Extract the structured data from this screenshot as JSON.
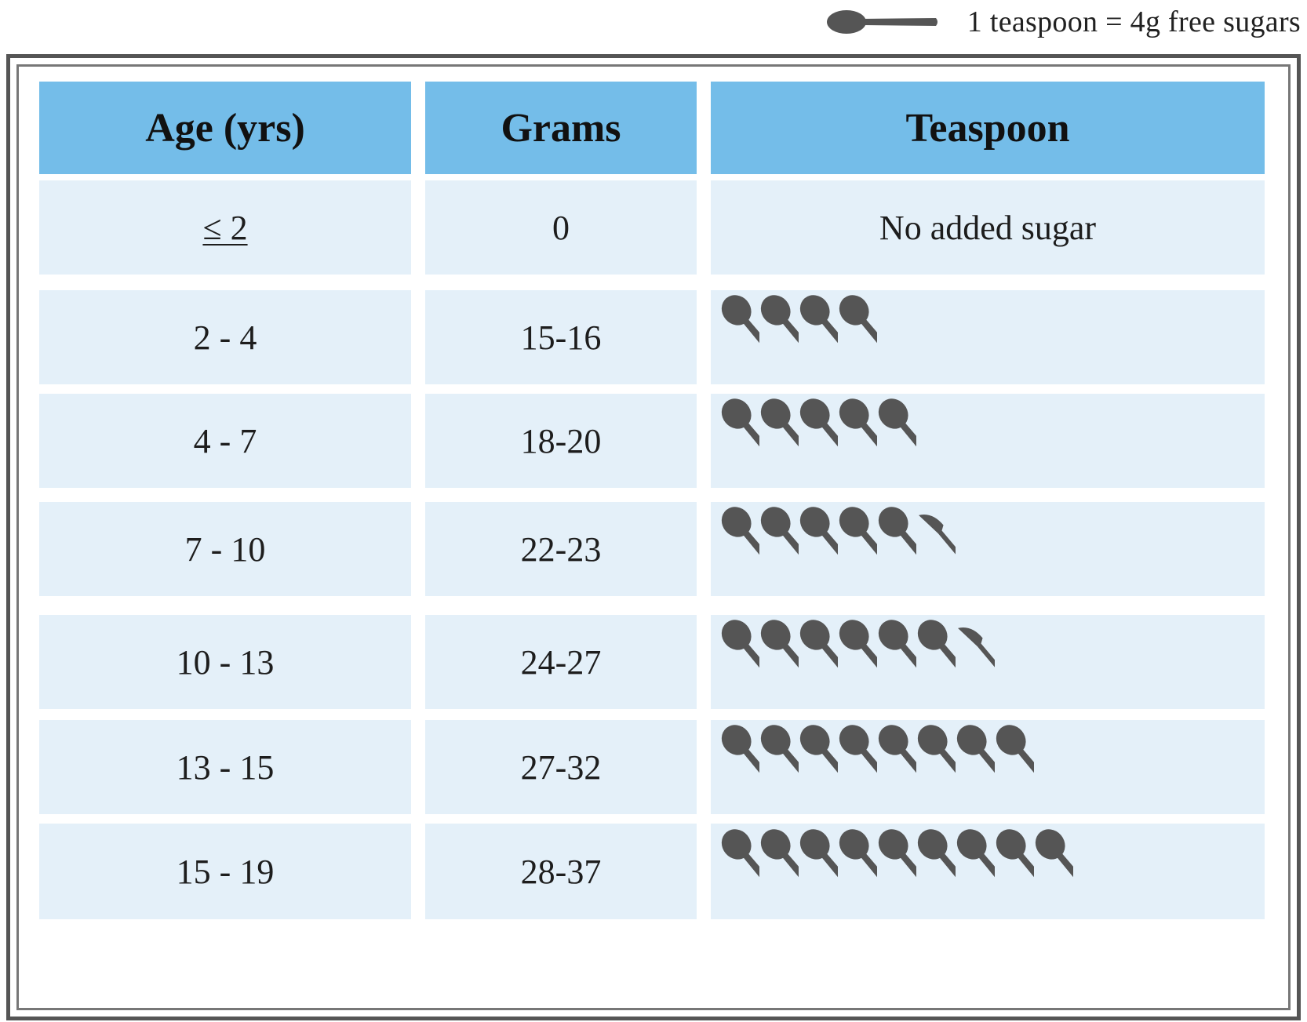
{
  "legend": {
    "icon": "teaspoon-icon",
    "text": "1 teaspoon = 4g free sugars"
  },
  "table": {
    "headers": [
      "Age (yrs)",
      "Grams",
      "Teaspoon"
    ],
    "rows": [
      {
        "age": "≤ 2",
        "grams": "0",
        "teaspoon_text": "No added sugar",
        "full_spoons": 0,
        "partial_spoon": false
      },
      {
        "age": "2 - 4",
        "grams": "15-16",
        "teaspoon_text": "",
        "full_spoons": 4,
        "partial_spoon": false
      },
      {
        "age": "4 - 7",
        "grams": "18-20",
        "teaspoon_text": "",
        "full_spoons": 5,
        "partial_spoon": false
      },
      {
        "age": "7 - 10",
        "grams": "22-23",
        "teaspoon_text": "",
        "full_spoons": 5,
        "partial_spoon": true
      },
      {
        "age": "10 - 13",
        "grams": "24-27",
        "teaspoon_text": "",
        "full_spoons": 6,
        "partial_spoon": true
      },
      {
        "age": "13 - 15",
        "grams": "27-32",
        "teaspoon_text": "",
        "full_spoons": 8,
        "partial_spoon": false
      },
      {
        "age": "15 - 19",
        "grams": "28-37",
        "teaspoon_text": "",
        "full_spoons": 9,
        "partial_spoon": false
      }
    ]
  },
  "colors": {
    "header_bg": "#74bde9",
    "row_bg": "#e4f0f9",
    "spoon": "#555555",
    "frame": "#555555"
  }
}
